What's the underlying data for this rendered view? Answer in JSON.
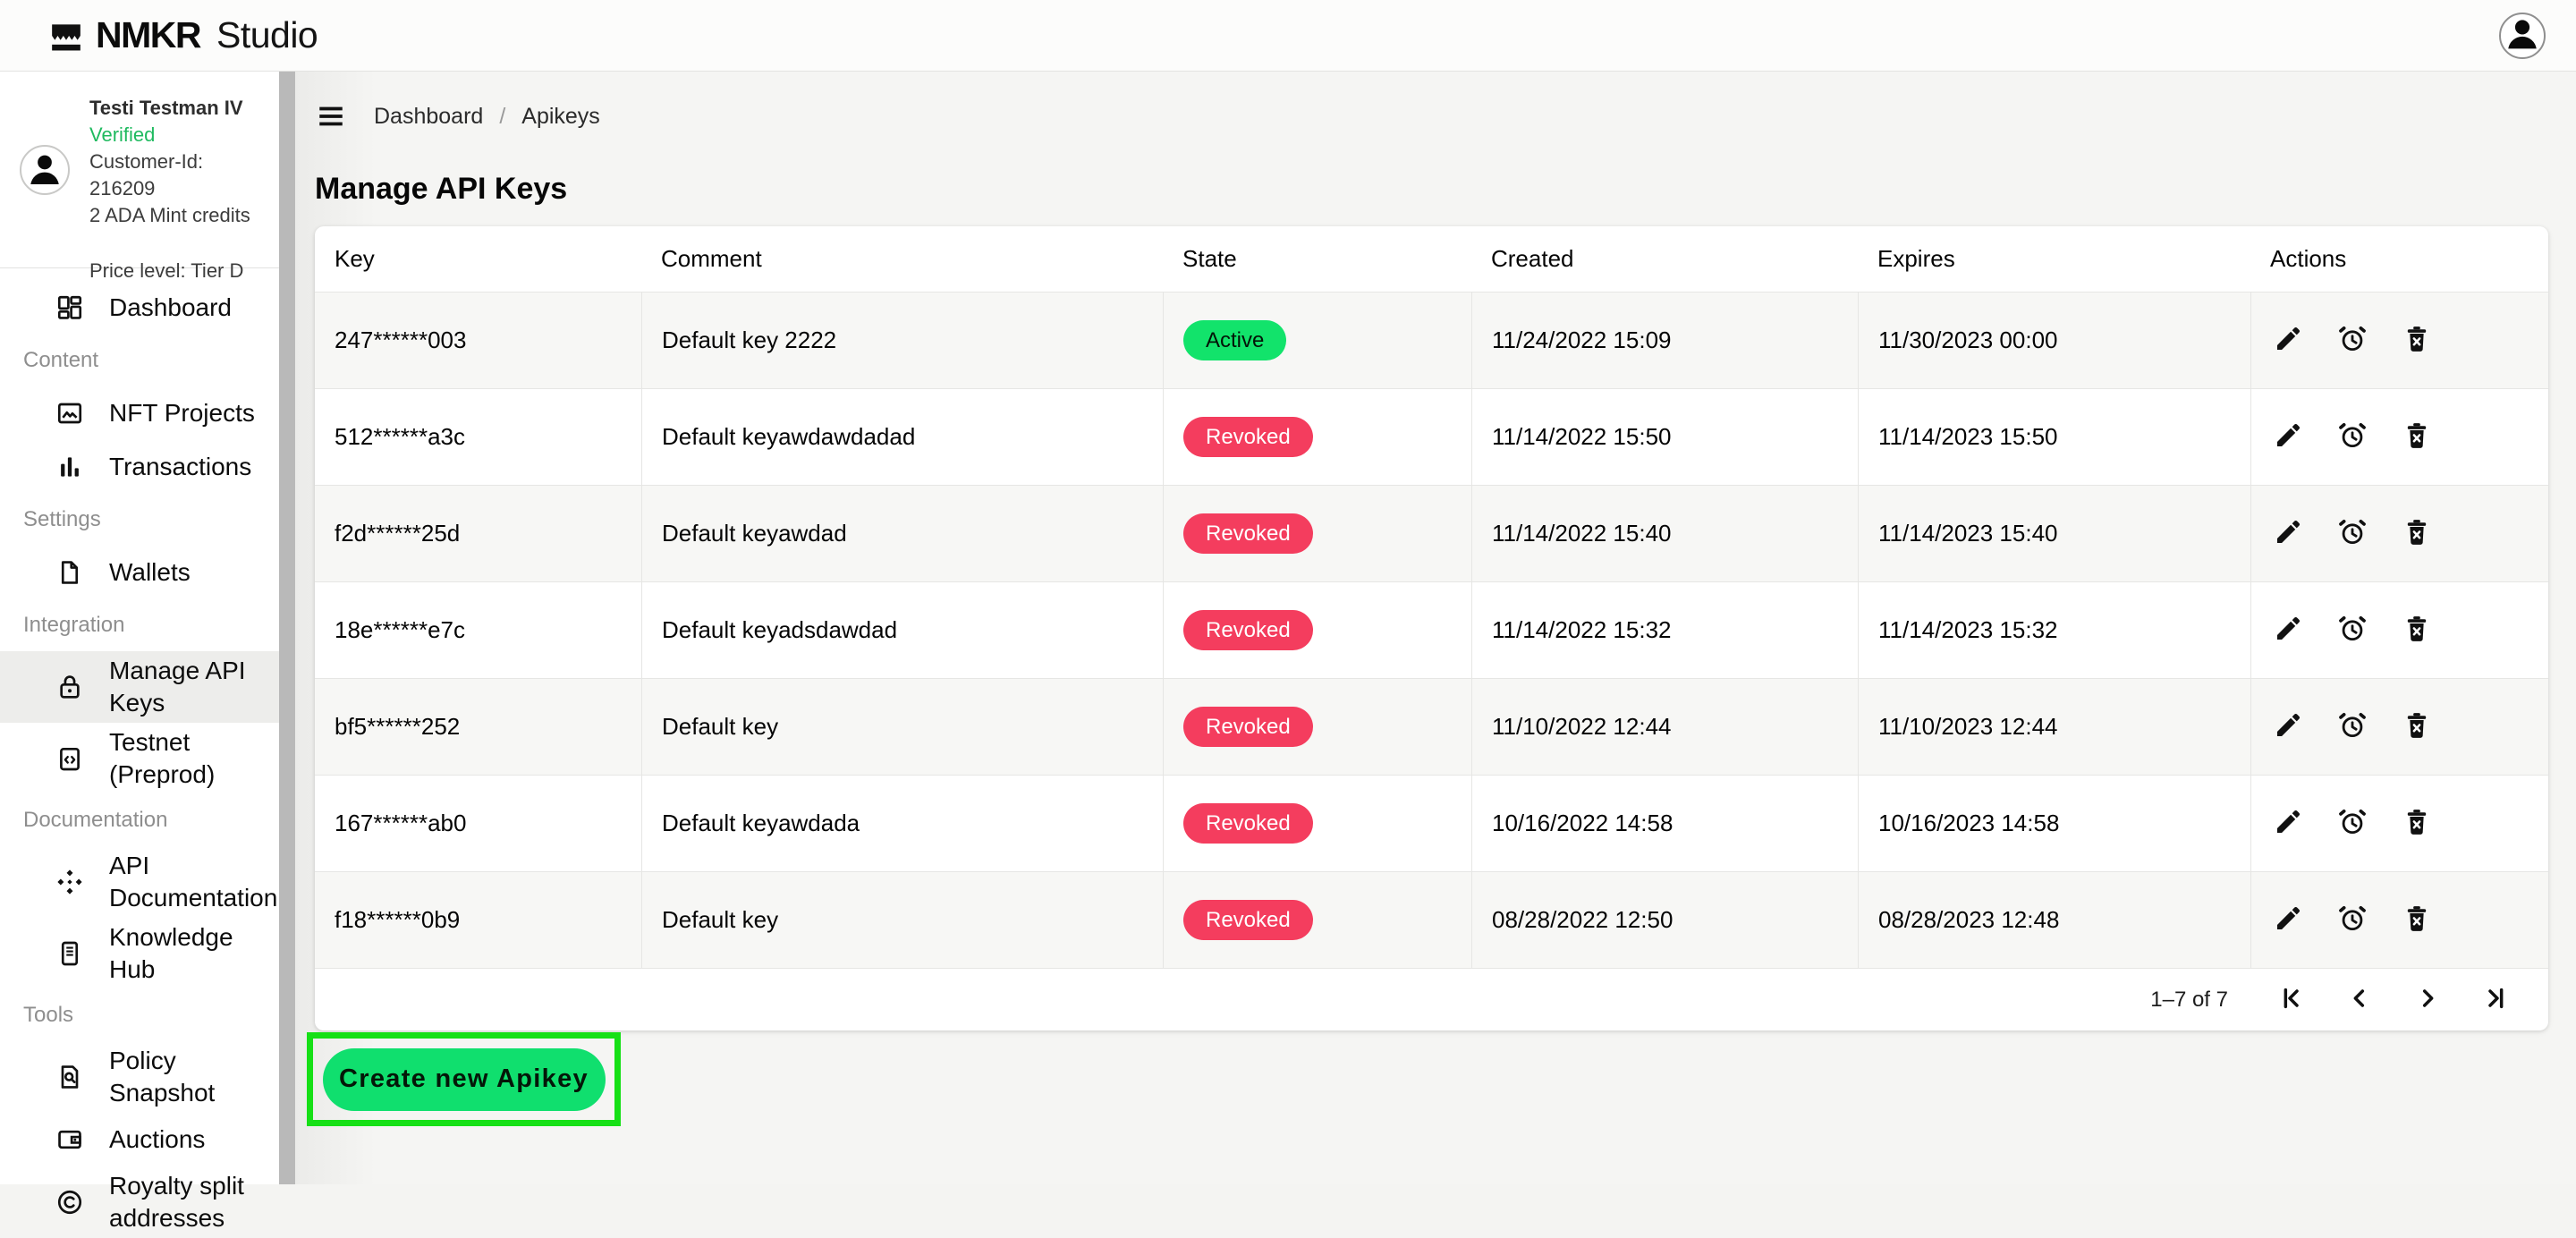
{
  "brand": {
    "name": "NMKR",
    "suffix": "Studio"
  },
  "user": {
    "name": "Testi Testman IV",
    "status": "Verified",
    "customer_id": "Customer-Id: 216209",
    "credits": "2 ADA Mint credits",
    "price_level": "Price level: Tier D"
  },
  "nav": [
    {
      "type": "item",
      "label": "Dashboard",
      "icon": "dashboard-icon",
      "active": false
    },
    {
      "type": "section",
      "label": "Content"
    },
    {
      "type": "item",
      "label": "NFT Projects",
      "icon": "image-icon",
      "active": false
    },
    {
      "type": "item",
      "label": "Transactions",
      "icon": "bar-chart-icon",
      "active": false
    },
    {
      "type": "section",
      "label": "Settings"
    },
    {
      "type": "item",
      "label": "Wallets",
      "icon": "file-icon",
      "active": false
    },
    {
      "type": "section",
      "label": "Integration"
    },
    {
      "type": "item",
      "label": "Manage API Keys",
      "icon": "lock-icon",
      "active": true
    },
    {
      "type": "item",
      "label": "Testnet (Preprod)",
      "icon": "code-clipboard-icon",
      "active": false
    },
    {
      "type": "section",
      "label": "Documentation"
    },
    {
      "type": "item",
      "label": "API Documentation",
      "icon": "api-icon",
      "active": false
    },
    {
      "type": "item",
      "label": "Knowledge Hub",
      "icon": "book-icon",
      "active": false
    },
    {
      "type": "section",
      "label": "Tools"
    },
    {
      "type": "item",
      "label": "Policy Snapshot",
      "icon": "doc-search-icon",
      "active": false
    },
    {
      "type": "item",
      "label": "Auctions",
      "icon": "wallet-icon",
      "active": false
    },
    {
      "type": "item",
      "label": "Royalty split addresses",
      "icon": "copyright-icon",
      "active": false
    }
  ],
  "breadcrumb": {
    "home": "Dashboard",
    "separator": "/",
    "current": "Apikeys"
  },
  "page_title": "Manage API Keys",
  "table": {
    "columns": [
      "Key",
      "Comment",
      "State",
      "Created",
      "Expires",
      "Actions"
    ],
    "rows": [
      {
        "key": "247******003",
        "comment": "Default key 2222",
        "state": "Active",
        "created": "11/24/2022 15:09",
        "expires": "11/30/2023 00:00"
      },
      {
        "key": "512******a3c",
        "comment": "Default keyawdawdadad",
        "state": "Revoked",
        "created": "11/14/2022 15:50",
        "expires": "11/14/2023 15:50"
      },
      {
        "key": "f2d******25d",
        "comment": "Default keyawdad",
        "state": "Revoked",
        "created": "11/14/2022 15:40",
        "expires": "11/14/2023 15:40"
      },
      {
        "key": "18e******e7c",
        "comment": "Default keyadsdawdad",
        "state": "Revoked",
        "created": "11/14/2022 15:32",
        "expires": "11/14/2023 15:32"
      },
      {
        "key": "bf5******252",
        "comment": "Default key",
        "state": "Revoked",
        "created": "11/10/2022 12:44",
        "expires": "11/10/2023 12:44"
      },
      {
        "key": "167******ab0",
        "comment": "Default keyawdada",
        "state": "Revoked",
        "created": "10/16/2022 14:58",
        "expires": "10/16/2023 14:58"
      },
      {
        "key": "f18******0b9",
        "comment": "Default key",
        "state": "Revoked",
        "created": "08/28/2022 12:50",
        "expires": "08/28/2023 12:48"
      }
    ],
    "row_actions": [
      "edit",
      "set-expiry",
      "delete"
    ]
  },
  "pagination": {
    "range_label": "1–7 of 7"
  },
  "create_button": {
    "label": "Create new Apikey"
  },
  "colors": {
    "active_badge": "#12e36b",
    "revoked_badge": "#f43d5e",
    "verified_text": "#1fba5f",
    "button_green": "#10df6e",
    "highlight_outline": "#16e016"
  }
}
